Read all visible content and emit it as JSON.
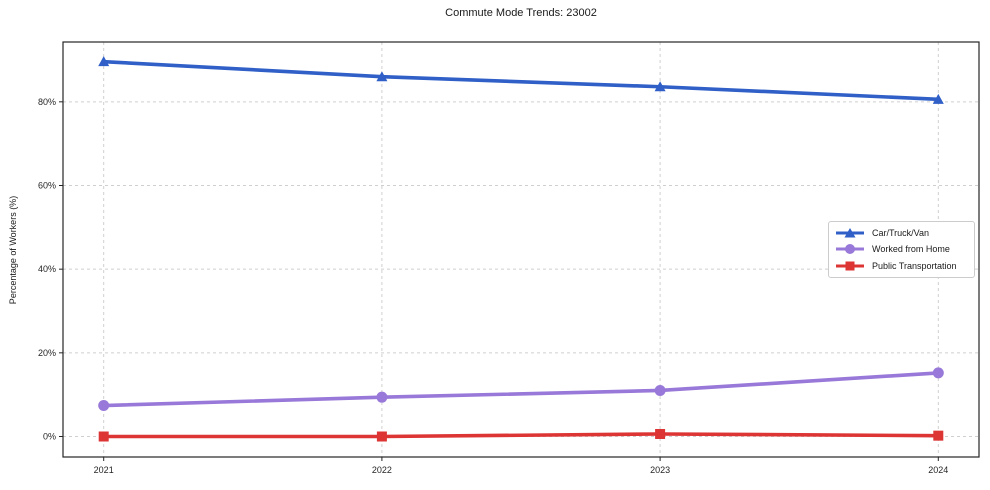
{
  "chart_data": {
    "type": "line",
    "title": "Commute Mode Trends: 23002",
    "xlabel": "",
    "ylabel": "Percentage of Workers (%)",
    "x": [
      "2021",
      "2022",
      "2023",
      "2024"
    ],
    "yticks": [
      0,
      20,
      40,
      60,
      80
    ],
    "ytick_suffix": "%",
    "ylim": [
      -4.9,
      94.3
    ],
    "grid": true,
    "grid_style": "dashed",
    "legend_position": "center-right",
    "series": [
      {
        "name": "Car/Truck/Van",
        "color": "#2f5fc7",
        "marker": "triangle",
        "values": [
          89.6,
          86.0,
          83.6,
          80.6
        ]
      },
      {
        "name": "Worked from Home",
        "color": "#9878d8",
        "marker": "circle",
        "values": [
          7.4,
          9.4,
          11.0,
          15.2
        ]
      },
      {
        "name": "Public Transportation",
        "color": "#dd3434",
        "marker": "square",
        "values": [
          0.0,
          0.0,
          0.6,
          0.2
        ]
      }
    ]
  },
  "colors": {
    "grid": "#cfcfcf",
    "axis": "#262626",
    "text": "#1a1a1a",
    "legend_border": "#cccccc",
    "background": "#ffffff"
  }
}
